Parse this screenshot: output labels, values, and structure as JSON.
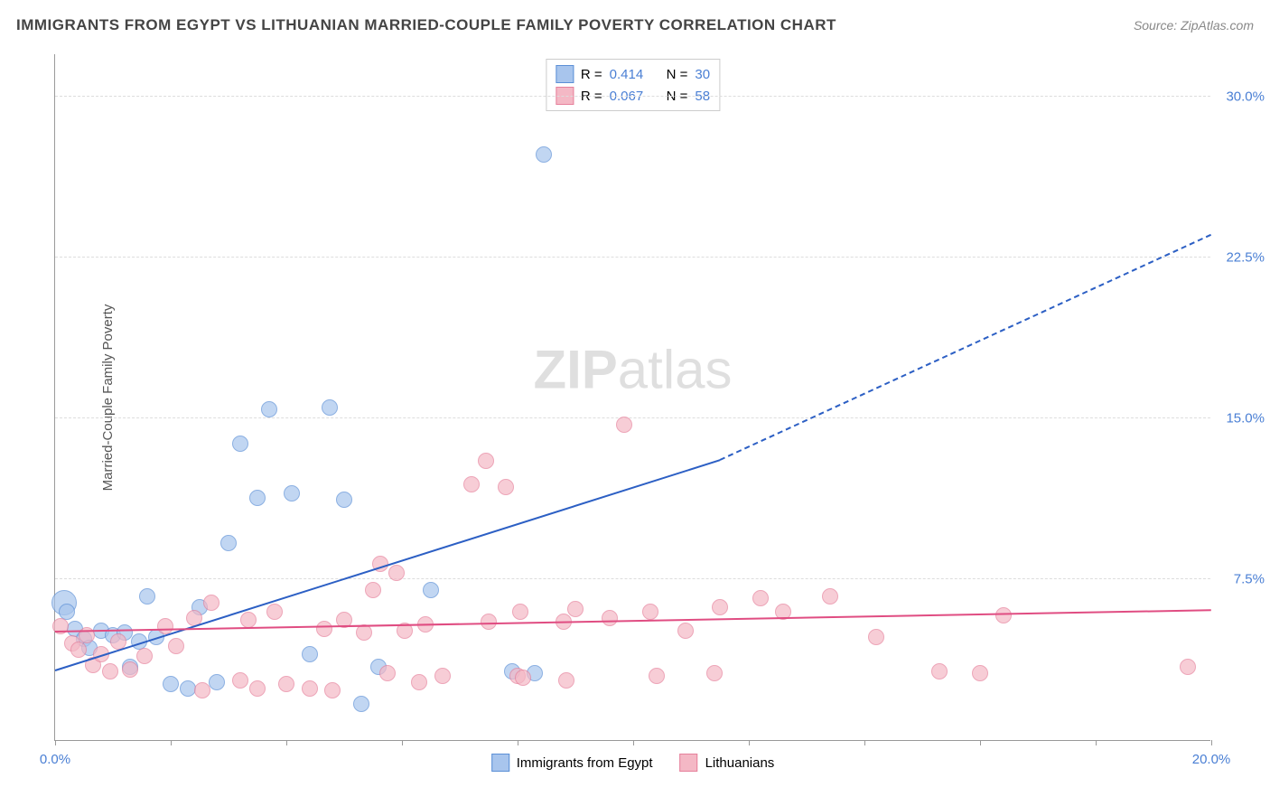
{
  "title": "IMMIGRANTS FROM EGYPT VS LITHUANIAN MARRIED-COUPLE FAMILY POVERTY CORRELATION CHART",
  "source": "Source: ZipAtlas.com",
  "watermark_bold": "ZIP",
  "watermark_rest": "atlas",
  "y_axis_title": "Married-Couple Family Poverty",
  "chart": {
    "type": "scatter",
    "xlim": [
      0,
      20
    ],
    "ylim": [
      0,
      32
    ],
    "x_ticks": [
      0,
      2,
      4,
      6,
      8,
      10,
      12,
      14,
      16,
      18,
      20
    ],
    "x_tick_labels": {
      "0": "0.0%",
      "20": "20.0%"
    },
    "y_gridlines": [
      7.5,
      15.0,
      22.5,
      30.0
    ],
    "y_tick_labels": [
      "7.5%",
      "15.0%",
      "22.5%",
      "30.0%"
    ],
    "x_label_color": "#4a7fd4",
    "y_label_color": "#4a7fd4",
    "grid_color": "#dddddd",
    "background_color": "#ffffff",
    "marker_radius": 9,
    "marker_border_width": 1
  },
  "series": [
    {
      "name": "Immigrants from Egypt",
      "fill_color": "#a8c5ed",
      "border_color": "#5b8fd6",
      "trend_color": "#2c5fc4",
      "R": "0.414",
      "N": "30",
      "trend": {
        "x1": 0,
        "y1": 3.2,
        "x2": 11.5,
        "y2": 13.0,
        "extend_x2": 20,
        "extend_y2": 23.5,
        "dash_extend": true
      },
      "points": [
        {
          "x": 0.15,
          "y": 6.4,
          "r": 14
        },
        {
          "x": 0.2,
          "y": 6.0
        },
        {
          "x": 0.35,
          "y": 5.2
        },
        {
          "x": 0.5,
          "y": 4.7
        },
        {
          "x": 0.6,
          "y": 4.3
        },
        {
          "x": 0.8,
          "y": 5.1
        },
        {
          "x": 1.0,
          "y": 4.9
        },
        {
          "x": 1.2,
          "y": 5.0
        },
        {
          "x": 1.3,
          "y": 3.4
        },
        {
          "x": 1.45,
          "y": 4.6
        },
        {
          "x": 1.6,
          "y": 6.7
        },
        {
          "x": 1.75,
          "y": 4.8
        },
        {
          "x": 2.0,
          "y": 2.6
        },
        {
          "x": 2.3,
          "y": 2.4
        },
        {
          "x": 2.5,
          "y": 6.2
        },
        {
          "x": 2.8,
          "y": 2.7
        },
        {
          "x": 3.0,
          "y": 9.2
        },
        {
          "x": 3.2,
          "y": 13.8
        },
        {
          "x": 3.5,
          "y": 11.3
        },
        {
          "x": 3.7,
          "y": 15.4
        },
        {
          "x": 4.1,
          "y": 11.5
        },
        {
          "x": 4.4,
          "y": 4.0
        },
        {
          "x": 4.75,
          "y": 15.5
        },
        {
          "x": 5.0,
          "y": 11.2
        },
        {
          "x": 5.3,
          "y": 1.7
        },
        {
          "x": 5.6,
          "y": 3.4
        },
        {
          "x": 6.5,
          "y": 7.0
        },
        {
          "x": 7.9,
          "y": 3.2
        },
        {
          "x": 8.3,
          "y": 3.1
        },
        {
          "x": 8.45,
          "y": 27.3
        }
      ]
    },
    {
      "name": "Lithuanians",
      "fill_color": "#f4b8c5",
      "border_color": "#e6809b",
      "trend_color": "#e04d82",
      "R": "0.067",
      "N": "58",
      "trend": {
        "x1": 0,
        "y1": 5.0,
        "x2": 20,
        "y2": 6.0,
        "dash_extend": false
      },
      "points": [
        {
          "x": 0.1,
          "y": 5.3
        },
        {
          "x": 0.3,
          "y": 4.5
        },
        {
          "x": 0.4,
          "y": 4.2
        },
        {
          "x": 0.55,
          "y": 4.9
        },
        {
          "x": 0.65,
          "y": 3.5
        },
        {
          "x": 0.8,
          "y": 4.0
        },
        {
          "x": 0.95,
          "y": 3.2
        },
        {
          "x": 1.1,
          "y": 4.6
        },
        {
          "x": 1.3,
          "y": 3.3
        },
        {
          "x": 1.55,
          "y": 3.9
        },
        {
          "x": 1.9,
          "y": 5.3
        },
        {
          "x": 2.1,
          "y": 4.4
        },
        {
          "x": 2.4,
          "y": 5.7
        },
        {
          "x": 2.55,
          "y": 2.3
        },
        {
          "x": 2.7,
          "y": 6.4
        },
        {
          "x": 3.2,
          "y": 2.8
        },
        {
          "x": 3.35,
          "y": 5.6
        },
        {
          "x": 3.5,
          "y": 2.4
        },
        {
          "x": 3.8,
          "y": 6.0
        },
        {
          "x": 4.0,
          "y": 2.6
        },
        {
          "x": 4.4,
          "y": 2.4
        },
        {
          "x": 4.65,
          "y": 5.2
        },
        {
          "x": 4.8,
          "y": 2.3
        },
        {
          "x": 5.0,
          "y": 5.6
        },
        {
          "x": 5.35,
          "y": 5.0
        },
        {
          "x": 5.5,
          "y": 7.0
        },
        {
          "x": 5.62,
          "y": 8.2
        },
        {
          "x": 5.75,
          "y": 3.1
        },
        {
          "x": 5.9,
          "y": 7.8
        },
        {
          "x": 6.05,
          "y": 5.1
        },
        {
          "x": 6.3,
          "y": 2.7
        },
        {
          "x": 6.4,
          "y": 5.4
        },
        {
          "x": 6.7,
          "y": 3.0
        },
        {
          "x": 7.2,
          "y": 11.9
        },
        {
          "x": 7.45,
          "y": 13.0
        },
        {
          "x": 7.5,
          "y": 5.5
        },
        {
          "x": 7.8,
          "y": 11.8
        },
        {
          "x": 8.0,
          "y": 3.0
        },
        {
          "x": 8.05,
          "y": 6.0
        },
        {
          "x": 8.1,
          "y": 2.9
        },
        {
          "x": 8.8,
          "y": 5.5
        },
        {
          "x": 8.85,
          "y": 2.8
        },
        {
          "x": 9.0,
          "y": 6.1
        },
        {
          "x": 9.6,
          "y": 5.7
        },
        {
          "x": 9.85,
          "y": 14.7
        },
        {
          "x": 10.3,
          "y": 6.0
        },
        {
          "x": 10.4,
          "y": 3.0
        },
        {
          "x": 10.9,
          "y": 5.1
        },
        {
          "x": 11.4,
          "y": 3.1
        },
        {
          "x": 11.5,
          "y": 6.2
        },
        {
          "x": 12.2,
          "y": 6.6
        },
        {
          "x": 12.6,
          "y": 6.0
        },
        {
          "x": 13.4,
          "y": 6.7
        },
        {
          "x": 14.2,
          "y": 4.8
        },
        {
          "x": 15.3,
          "y": 3.2
        },
        {
          "x": 16.0,
          "y": 3.1
        },
        {
          "x": 16.4,
          "y": 5.8
        },
        {
          "x": 19.6,
          "y": 3.4
        }
      ]
    }
  ],
  "legend_top": {
    "R_label": "R  =",
    "N_label": "N  =",
    "value_color": "#4a7fd4"
  }
}
